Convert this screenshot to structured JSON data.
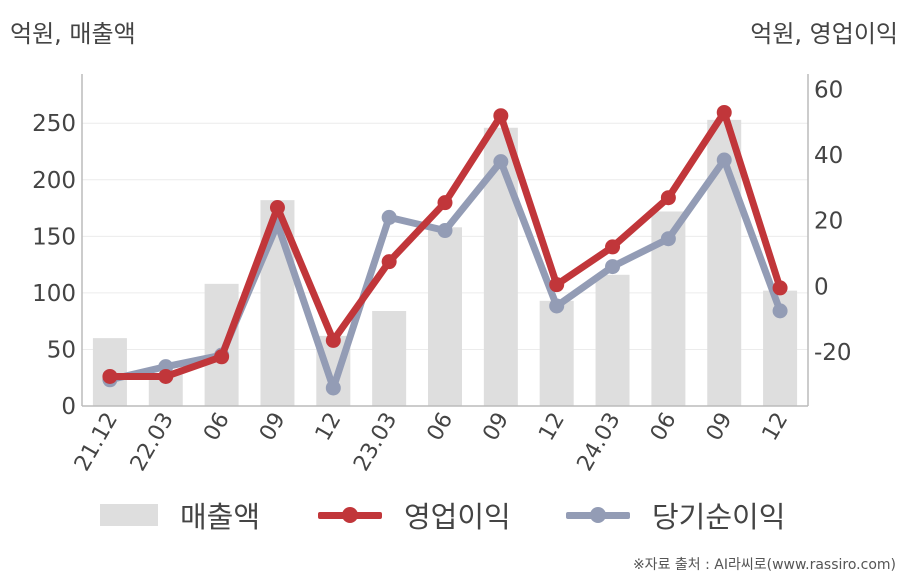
{
  "units": {
    "left": "억원, 매출액",
    "right": "억원, 영업이익"
  },
  "source": "※자료 출처 : AI라씨로(www.rassiro.com)",
  "colors": {
    "bar": "#dedede",
    "op": "#c1363a",
    "net": "#939cb5",
    "axis": "#bbbbbb",
    "grid": "#ececec"
  },
  "legend": {
    "revenue": "매출액",
    "op_profit": "영업이익",
    "net_profit": "당기순이익"
  },
  "chart_data": {
    "type": "bar+line",
    "categories": [
      "21.12",
      "22.03",
      "06",
      "09",
      "12",
      "23.03",
      "06",
      "09",
      "12",
      "24.03",
      "06",
      "09",
      "12"
    ],
    "y_left": {
      "ticks": [
        0,
        50,
        100,
        150,
        200,
        250
      ],
      "range": [
        0,
        290
      ]
    },
    "y_right": {
      "ticks": [
        -20,
        0,
        20,
        40,
        60
      ],
      "range": [
        -36.5,
        63.5
      ]
    },
    "series": [
      {
        "name": "매출액",
        "type": "bar",
        "axis": "left",
        "values": [
          60,
          28,
          108,
          182,
          62,
          84,
          158,
          246,
          93,
          116,
          172,
          253,
          102
        ]
      },
      {
        "name": "영업이익",
        "type": "line",
        "axis": "right",
        "values": [
          -27.5,
          -27.5,
          -21.5,
          24,
          -16.5,
          7.5,
          25.5,
          52,
          0.5,
          12,
          27,
          53,
          -0.5
        ]
      },
      {
        "name": "당기순이익",
        "type": "line",
        "axis": "right",
        "values": [
          -28.5,
          -24.5,
          -21,
          19,
          -31,
          21,
          17,
          38,
          -6,
          6,
          14.5,
          38.5,
          -7.5
        ]
      }
    ]
  }
}
